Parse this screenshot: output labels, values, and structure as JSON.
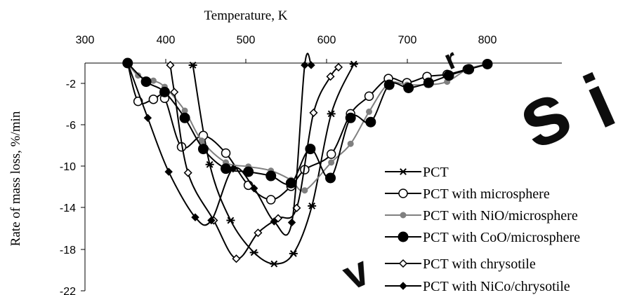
{
  "chart_data": {
    "type": "line",
    "title": "",
    "xlabel": "Temperature, K",
    "ylabel": "Rate of mass loss, %/min",
    "xlim": [
      300,
      800
    ],
    "ylim": [
      -22,
      0
    ],
    "x_ticks": [
      "300",
      "400",
      "500",
      "600",
      "700",
      "800"
    ],
    "y_ticks": [
      "-2",
      "-6",
      "-10",
      "-14",
      "-18",
      "-22"
    ],
    "x_axis_position": "top",
    "grid": false,
    "legend_position": "bottom-right",
    "series": [
      {
        "name": "PCT",
        "color": "#000000",
        "marker": "star",
        "points": [
          [
            434,
            -0.2
          ],
          [
            455,
            -9.8
          ],
          [
            481,
            -15.2
          ],
          [
            510,
            -18.3
          ],
          [
            535,
            -19.4
          ],
          [
            559,
            -18.4
          ],
          [
            582,
            -13.8
          ],
          [
            606,
            -4.9
          ],
          [
            634,
            -0.1
          ]
        ]
      },
      {
        "name": "PCT with microsphere",
        "color": "#000000",
        "marker": "circle-open",
        "points": [
          [
            353,
            0
          ],
          [
            366,
            -3.7
          ],
          [
            385,
            -3.5
          ],
          [
            399,
            -3.4
          ],
          [
            420,
            -8.1
          ],
          [
            447,
            -7
          ],
          [
            475,
            -8.7
          ],
          [
            503,
            -11.8
          ],
          [
            531,
            -13.2
          ],
          [
            556,
            -11.9
          ],
          [
            573,
            -10.3
          ],
          [
            606,
            -8.8
          ],
          [
            630,
            -4.9
          ],
          [
            653,
            -3.2
          ],
          [
            677,
            -1.5
          ],
          [
            700,
            -1.9
          ],
          [
            725,
            -1.3
          ],
          [
            750,
            -1.1
          ],
          [
            775,
            -0.6
          ],
          [
            800,
            -0.1
          ]
        ]
      },
      {
        "name": "PCT with NiO/microsphere",
        "color": "#808080",
        "marker": "circle-small",
        "points": [
          [
            353,
            0
          ],
          [
            366,
            -1.2
          ],
          [
            385,
            -1.7
          ],
          [
            399,
            -2.3
          ],
          [
            424,
            -4.6
          ],
          [
            445,
            -7.5
          ],
          [
            475,
            -9.6
          ],
          [
            503,
            -10
          ],
          [
            531,
            -10.4
          ],
          [
            556,
            -11.3
          ],
          [
            573,
            -12.3
          ],
          [
            606,
            -9.6
          ],
          [
            630,
            -7.8
          ],
          [
            653,
            -4.7
          ],
          [
            677,
            -2
          ],
          [
            700,
            -2.1
          ],
          [
            725,
            -2.1
          ],
          [
            750,
            -1.8
          ],
          [
            775,
            -0.6
          ],
          [
            800,
            -0.1
          ]
        ]
      },
      {
        "name": "PCT with CoO/microsphere",
        "color": "#000000",
        "marker": "circle-filled",
        "points": [
          [
            353,
            0
          ],
          [
            376,
            -1.8
          ],
          [
            399,
            -2.8
          ],
          [
            424,
            -5.3
          ],
          [
            447,
            -8.3
          ],
          [
            475,
            -10.2
          ],
          [
            503,
            -10.5
          ],
          [
            531,
            -10.9
          ],
          [
            556,
            -11.6
          ],
          [
            580,
            -8.3
          ],
          [
            605,
            -11.1
          ],
          [
            630,
            -5.3
          ],
          [
            655,
            -5.7
          ],
          [
            678,
            -2.1
          ],
          [
            702,
            -2.4
          ],
          [
            727,
            -1.9
          ],
          [
            752,
            -1.2
          ],
          [
            777,
            -0.6
          ],
          [
            800,
            -0.1
          ]
        ]
      },
      {
        "name": "PCT with chrysotile",
        "color": "#000000",
        "marker": "diamond-open",
        "points": [
          [
            406,
            -0.2
          ],
          [
            411,
            -2.8
          ],
          [
            428,
            -10.6
          ],
          [
            460,
            -15.2
          ],
          [
            488,
            -18.9
          ],
          [
            515,
            -16.4
          ],
          [
            540,
            -15
          ],
          [
            563,
            -14
          ],
          [
            584,
            -4.8
          ],
          [
            605,
            -1.3
          ],
          [
            615,
            -0.4
          ]
        ]
      },
      {
        "name": "PCT with NiCo/chrysotile",
        "color": "#000000",
        "marker": "diamond-filled",
        "points": [
          [
            353,
            0
          ],
          [
            378,
            -5.3
          ],
          [
            404,
            -10.5
          ],
          [
            437,
            -14.9
          ],
          [
            457,
            -15.2
          ],
          [
            484,
            -10.2
          ],
          [
            510,
            -12.1
          ],
          [
            535,
            -15.3
          ],
          [
            557,
            -15.4
          ],
          [
            573,
            -0.2
          ],
          [
            581,
            -0.2
          ]
        ]
      }
    ]
  }
}
